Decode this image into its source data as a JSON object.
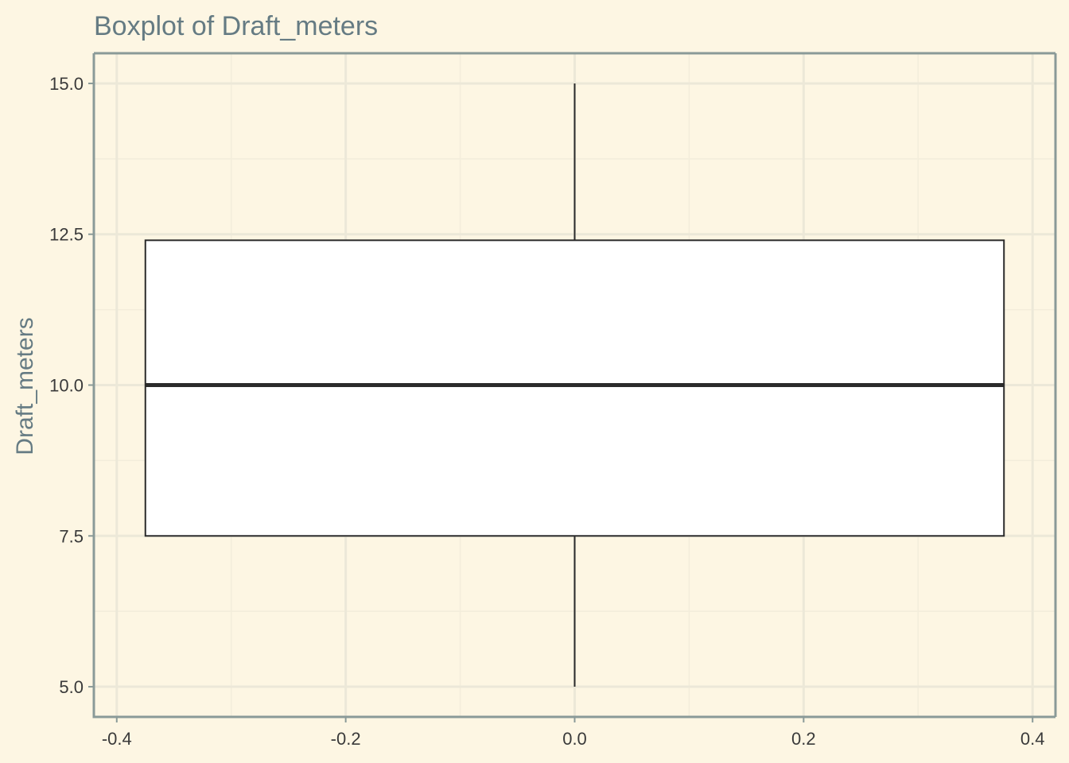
{
  "colors": {
    "background": "#fdf6e3",
    "text": "#657b83",
    "box_fill": "#ffffff",
    "box_stroke": "#2b2b2b"
  },
  "chart_data": {
    "type": "boxplot",
    "title": "Boxplot of Draft_meters",
    "xlabel": "",
    "ylabel": "Draft_meters",
    "xlim": [
      -0.42,
      0.42
    ],
    "ylim": [
      4.5,
      15.5
    ],
    "x_ticks": [
      -0.4,
      -0.2,
      0.0,
      0.2,
      0.4
    ],
    "x_tick_labels": [
      "-0.4",
      "-0.2",
      "0.0",
      "0.2",
      "0.4"
    ],
    "y_ticks": [
      5.0,
      7.5,
      10.0,
      12.5,
      15.0
    ],
    "y_tick_labels": [
      "5.0",
      "7.5",
      "10.0",
      "12.5",
      "15.0"
    ],
    "grid": true,
    "box": {
      "x_center": 0.0,
      "x_left": -0.375,
      "x_right": 0.375,
      "whisker_low": 5.0,
      "q1": 7.5,
      "median": 10.0,
      "q3": 12.4,
      "whisker_high": 15.0
    }
  }
}
